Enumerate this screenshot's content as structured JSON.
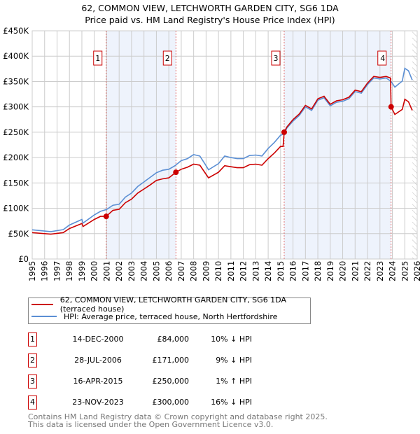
{
  "title": "62, COMMON VIEW, LETCHWORTH GARDEN CITY, SG6 1DA",
  "subtitle": "Price paid vs. HM Land Registry's House Price Index (HPI)",
  "chart_data": {
    "type": "line",
    "ylim": [
      0,
      450000
    ],
    "xlim": [
      1995,
      2026
    ],
    "yticks": [
      {
        "v": 0,
        "label": "£0"
      },
      {
        "v": 50000,
        "label": "£50K"
      },
      {
        "v": 100000,
        "label": "£100K"
      },
      {
        "v": 150000,
        "label": "£150K"
      },
      {
        "v": 200000,
        "label": "£200K"
      },
      {
        "v": 250000,
        "label": "£250K"
      },
      {
        "v": 300000,
        "label": "£300K"
      },
      {
        "v": 350000,
        "label": "£350K"
      },
      {
        "v": 400000,
        "label": "£400K"
      },
      {
        "v": 450000,
        "label": "£450K"
      }
    ],
    "xticks": [
      "1995",
      "1996",
      "1997",
      "1998",
      "1999",
      "2000",
      "2001",
      "2002",
      "2003",
      "2004",
      "2005",
      "2006",
      "2007",
      "2008",
      "2009",
      "2010",
      "2011",
      "2012",
      "2013",
      "2014",
      "2015",
      "2016",
      "2017",
      "2018",
      "2019",
      "2020",
      "2021",
      "2022",
      "2023",
      "2024",
      "2025",
      "2026"
    ],
    "shaded_ranges": [
      [
        2000.96,
        2006.57
      ],
      [
        2015.29,
        2023.9
      ]
    ],
    "forecast_from": 2025.6,
    "series": [
      {
        "name": "62, COMMON VIEW, LETCHWORTH GARDEN CITY, SG6 1DA (terraced house)",
        "color": "#cc0000",
        "x": [
          1995,
          1996.5,
          1997.5,
          1998,
          1999,
          1999.1,
          2000,
          2000.5,
          2000.96,
          2001.5,
          2002,
          2002.5,
          2003,
          2003.5,
          2004,
          2004.5,
          2005,
          2005.5,
          2006,
          2006.57,
          2007,
          2007.5,
          2008,
          2008.5,
          2009,
          2009.2,
          2010,
          2010.5,
          2011,
          2011.5,
          2012,
          2012.5,
          2013,
          2013.5,
          2014,
          2014.5,
          2015,
          2015.2,
          2015.29,
          2015.5,
          2016,
          2016.5,
          2017,
          2017.5,
          2018,
          2018.5,
          2019,
          2019.5,
          2020,
          2020.5,
          2021,
          2021.5,
          2022,
          2022.5,
          2023,
          2023.5,
          2023.85,
          2023.9,
          2024.2,
          2024.8,
          2025,
          2025.3,
          2025.6
        ],
        "y": [
          52,
          49,
          52,
          60,
          70,
          64,
          78,
          84,
          84,
          96,
          98,
          111,
          118,
          130,
          138,
          146,
          155,
          158,
          160,
          171,
          177,
          181,
          187,
          185,
          167,
          160,
          171,
          184,
          182,
          180,
          180,
          186,
          187,
          185,
          198,
          209,
          222,
          222,
          250,
          260,
          275,
          286,
          303,
          296,
          316,
          321,
          305,
          312,
          314,
          319,
          333,
          330,
          347,
          360,
          358,
          360,
          357,
          300,
          285,
          295,
          315,
          310,
          293
        ]
      },
      {
        "name": "HPI: Average price, terraced house, North Hertfordshire",
        "color": "#5b8fd4",
        "x": [
          1995,
          1996.5,
          1997.5,
          1998,
          1999,
          1999.1,
          2000,
          2000.5,
          2001,
          2001.5,
          2002,
          2002.5,
          2003,
          2003.5,
          2004,
          2004.5,
          2005,
          2005.5,
          2006,
          2006.5,
          2007,
          2007.5,
          2008,
          2008.5,
          2009,
          2009.2,
          2010,
          2010.5,
          2011,
          2011.5,
          2012,
          2012.5,
          2013,
          2013.5,
          2014,
          2014.5,
          2015,
          2015.3,
          2015.5,
          2016,
          2016.5,
          2017,
          2017.5,
          2018,
          2018.5,
          2019,
          2019.5,
          2020,
          2020.5,
          2021,
          2021.5,
          2022,
          2022.5,
          2023,
          2023.5,
          2023.9,
          2024.2,
          2024.8,
          2025,
          2025.3,
          2025.6
        ],
        "y": [
          57.6,
          54,
          58,
          67,
          78,
          71,
          87,
          94,
          97.7,
          106,
          108,
          122,
          130,
          143,
          152,
          161,
          170,
          175,
          177,
          184,
          194,
          198,
          206,
          203,
          184,
          176,
          188,
          203,
          200,
          198,
          198,
          204,
          205,
          203,
          218,
          230,
          244,
          247,
          258,
          272,
          283,
          300,
          293,
          313,
          318,
          302,
          309,
          311,
          316,
          330,
          327,
          344,
          357,
          355,
          357,
          350,
          339,
          351,
          376,
          371,
          353
        ]
      }
    ],
    "sales": [
      {
        "n": "1",
        "x": 2000.96,
        "y": 84
      },
      {
        "n": "2",
        "x": 2006.57,
        "y": 171
      },
      {
        "n": "3",
        "x": 2015.29,
        "y": 250
      },
      {
        "n": "4",
        "x": 2023.9,
        "y": 300
      }
    ]
  },
  "legend": {
    "property": "62, COMMON VIEW, LETCHWORTH GARDEN CITY, SG6 1DA (terraced house)",
    "hpi": "HPI: Average price, terraced house, North Hertfordshire"
  },
  "transactions": [
    {
      "n": "1",
      "date": "14-DEC-2000",
      "price": "£84,000",
      "hpi": "10% ↓ HPI"
    },
    {
      "n": "2",
      "date": "28-JUL-2006",
      "price": "£171,000",
      "hpi": "9% ↓ HPI"
    },
    {
      "n": "3",
      "date": "16-APR-2015",
      "price": "£250,000",
      "hpi": "1% ↑ HPI"
    },
    {
      "n": "4",
      "date": "23-NOV-2023",
      "price": "£300,000",
      "hpi": "16% ↓ HPI"
    }
  ],
  "footer": {
    "line1": "Contains HM Land Registry data © Crown copyright and database right 2025.",
    "line2": "This data is licensed under the Open Government Licence v3.0."
  }
}
